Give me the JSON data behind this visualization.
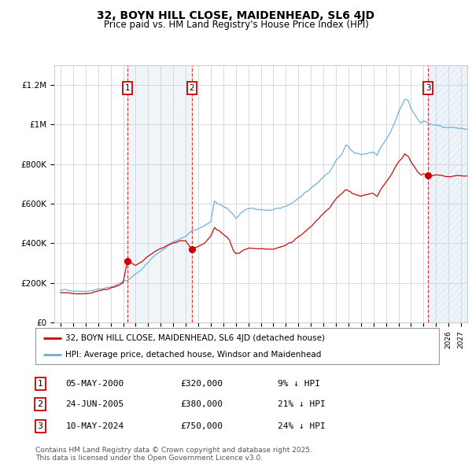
{
  "title": "32, BOYN HILL CLOSE, MAIDENHEAD, SL6 4JD",
  "subtitle": "Price paid vs. HM Land Registry's House Price Index (HPI)",
  "xlim": [
    1994.5,
    2027.5
  ],
  "ylim": [
    0,
    1300000
  ],
  "yticks": [
    0,
    200000,
    400000,
    600000,
    800000,
    1000000,
    1200000
  ],
  "ytick_labels": [
    "£0",
    "£200K",
    "£400K",
    "£600K",
    "£800K",
    "£1M",
    "£1.2M"
  ],
  "transactions": [
    {
      "num": 1,
      "date": "05-MAY-2000",
      "price": 320000,
      "pct": "9%",
      "year": 2000.35
    },
    {
      "num": 2,
      "date": "24-JUN-2005",
      "price": 380000,
      "pct": "21%",
      "year": 2005.48
    },
    {
      "num": 3,
      "date": "10-MAY-2024",
      "price": 750000,
      "pct": "24%",
      "year": 2024.36
    }
  ],
  "legend_line1": "32, BOYN HILL CLOSE, MAIDENHEAD, SL6 4JD (detached house)",
  "legend_line2": "HPI: Average price, detached house, Windsor and Maidenhead",
  "footnote": "Contains HM Land Registry data © Crown copyright and database right 2025.\nThis data is licensed under the Open Government Licence v3.0.",
  "price_line_color": "#cc0000",
  "hpi_line_color": "#6baed6",
  "shade_color": "#c6dbef",
  "hatch_color": "#c6dbef",
  "grid_color": "#cccccc",
  "bg_color": "#ffffff",
  "box_color": "#cc0000",
  "hpi_anchors": [
    [
      1995.0,
      162000
    ],
    [
      1995.5,
      163000
    ],
    [
      1996.0,
      162000
    ],
    [
      1996.5,
      164000
    ],
    [
      1997.0,
      166000
    ],
    [
      1997.5,
      170000
    ],
    [
      1998.0,
      175000
    ],
    [
      1998.5,
      180000
    ],
    [
      1999.0,
      188000
    ],
    [
      1999.5,
      200000
    ],
    [
      2000.0,
      215000
    ],
    [
      2000.35,
      222000
    ],
    [
      2000.5,
      228000
    ],
    [
      2001.0,
      255000
    ],
    [
      2001.5,
      278000
    ],
    [
      2002.0,
      310000
    ],
    [
      2002.5,
      340000
    ],
    [
      2003.0,
      365000
    ],
    [
      2003.5,
      385000
    ],
    [
      2004.0,
      405000
    ],
    [
      2004.5,
      420000
    ],
    [
      2005.0,
      435000
    ],
    [
      2005.48,
      460000
    ],
    [
      2005.5,
      462000
    ],
    [
      2006.0,
      475000
    ],
    [
      2006.5,
      490000
    ],
    [
      2007.0,
      510000
    ],
    [
      2007.3,
      615000
    ],
    [
      2007.5,
      600000
    ],
    [
      2007.8,
      590000
    ],
    [
      2008.0,
      580000
    ],
    [
      2008.3,
      570000
    ],
    [
      2008.5,
      555000
    ],
    [
      2008.8,
      540000
    ],
    [
      2009.0,
      520000
    ],
    [
      2009.3,
      540000
    ],
    [
      2009.5,
      555000
    ],
    [
      2009.8,
      565000
    ],
    [
      2010.0,
      570000
    ],
    [
      2010.5,
      565000
    ],
    [
      2011.0,
      560000
    ],
    [
      2011.5,
      558000
    ],
    [
      2012.0,
      560000
    ],
    [
      2012.5,
      562000
    ],
    [
      2013.0,
      575000
    ],
    [
      2013.5,
      595000
    ],
    [
      2014.0,
      620000
    ],
    [
      2014.5,
      645000
    ],
    [
      2015.0,
      670000
    ],
    [
      2015.5,
      695000
    ],
    [
      2016.0,
      730000
    ],
    [
      2016.5,
      760000
    ],
    [
      2017.0,
      820000
    ],
    [
      2017.5,
      855000
    ],
    [
      2017.8,
      900000
    ],
    [
      2018.0,
      890000
    ],
    [
      2018.3,
      870000
    ],
    [
      2018.5,
      860000
    ],
    [
      2018.8,
      855000
    ],
    [
      2019.0,
      850000
    ],
    [
      2019.5,
      855000
    ],
    [
      2020.0,
      860000
    ],
    [
      2020.3,
      840000
    ],
    [
      2020.5,
      870000
    ],
    [
      2021.0,
      920000
    ],
    [
      2021.5,
      980000
    ],
    [
      2021.8,
      1020000
    ],
    [
      2022.0,
      1060000
    ],
    [
      2022.3,
      1100000
    ],
    [
      2022.5,
      1130000
    ],
    [
      2022.8,
      1120000
    ],
    [
      2023.0,
      1080000
    ],
    [
      2023.3,
      1050000
    ],
    [
      2023.5,
      1030000
    ],
    [
      2023.8,
      1010000
    ],
    [
      2024.0,
      1020000
    ],
    [
      2024.36,
      1010000
    ],
    [
      2024.5,
      1005000
    ],
    [
      2025.0,
      1000000
    ],
    [
      2025.5,
      995000
    ],
    [
      2026.0,
      990000
    ],
    [
      2026.5,
      985000
    ],
    [
      2027.0,
      980000
    ],
    [
      2027.5,
      975000
    ]
  ],
  "price_anchors": [
    [
      1995.0,
      150000
    ],
    [
      1995.5,
      151000
    ],
    [
      1996.0,
      150000
    ],
    [
      1996.5,
      152000
    ],
    [
      1997.0,
      154000
    ],
    [
      1997.5,
      158000
    ],
    [
      1998.0,
      163000
    ],
    [
      1998.5,
      168000
    ],
    [
      1999.0,
      175000
    ],
    [
      1999.5,
      188000
    ],
    [
      2000.0,
      205000
    ],
    [
      2000.35,
      320000
    ],
    [
      2000.5,
      310000
    ],
    [
      2001.0,
      295000
    ],
    [
      2001.5,
      308000
    ],
    [
      2002.0,
      330000
    ],
    [
      2002.5,
      355000
    ],
    [
      2003.0,
      375000
    ],
    [
      2003.5,
      390000
    ],
    [
      2004.0,
      405000
    ],
    [
      2004.5,
      415000
    ],
    [
      2005.0,
      420000
    ],
    [
      2005.48,
      380000
    ],
    [
      2005.6,
      382000
    ],
    [
      2006.0,
      395000
    ],
    [
      2006.5,
      415000
    ],
    [
      2007.0,
      450000
    ],
    [
      2007.3,
      490000
    ],
    [
      2007.5,
      480000
    ],
    [
      2007.8,
      470000
    ],
    [
      2008.0,
      460000
    ],
    [
      2008.3,
      445000
    ],
    [
      2008.5,
      430000
    ],
    [
      2008.8,
      380000
    ],
    [
      2009.0,
      365000
    ],
    [
      2009.3,
      370000
    ],
    [
      2009.5,
      378000
    ],
    [
      2009.8,
      385000
    ],
    [
      2010.0,
      390000
    ],
    [
      2010.5,
      388000
    ],
    [
      2011.0,
      385000
    ],
    [
      2011.5,
      383000
    ],
    [
      2012.0,
      385000
    ],
    [
      2012.5,
      390000
    ],
    [
      2013.0,
      400000
    ],
    [
      2013.5,
      420000
    ],
    [
      2014.0,
      445000
    ],
    [
      2014.5,
      470000
    ],
    [
      2015.0,
      495000
    ],
    [
      2015.5,
      525000
    ],
    [
      2016.0,
      560000
    ],
    [
      2016.5,
      590000
    ],
    [
      2017.0,
      635000
    ],
    [
      2017.5,
      665000
    ],
    [
      2017.8,
      685000
    ],
    [
      2018.0,
      680000
    ],
    [
      2018.3,
      665000
    ],
    [
      2018.5,
      660000
    ],
    [
      2018.8,
      655000
    ],
    [
      2019.0,
      650000
    ],
    [
      2019.5,
      655000
    ],
    [
      2020.0,
      660000
    ],
    [
      2020.3,
      645000
    ],
    [
      2020.5,
      670000
    ],
    [
      2021.0,
      715000
    ],
    [
      2021.5,
      760000
    ],
    [
      2021.8,
      800000
    ],
    [
      2022.0,
      820000
    ],
    [
      2022.3,
      840000
    ],
    [
      2022.5,
      860000
    ],
    [
      2022.8,
      850000
    ],
    [
      2023.0,
      820000
    ],
    [
      2023.3,
      790000
    ],
    [
      2023.5,
      770000
    ],
    [
      2023.8,
      755000
    ],
    [
      2024.0,
      760000
    ],
    [
      2024.36,
      750000
    ],
    [
      2024.5,
      745000
    ],
    [
      2025.0,
      755000
    ],
    [
      2025.5,
      750000
    ],
    [
      2026.0,
      748000
    ],
    [
      2026.5,
      745000
    ],
    [
      2027.0,
      743000
    ],
    [
      2027.5,
      740000
    ]
  ]
}
